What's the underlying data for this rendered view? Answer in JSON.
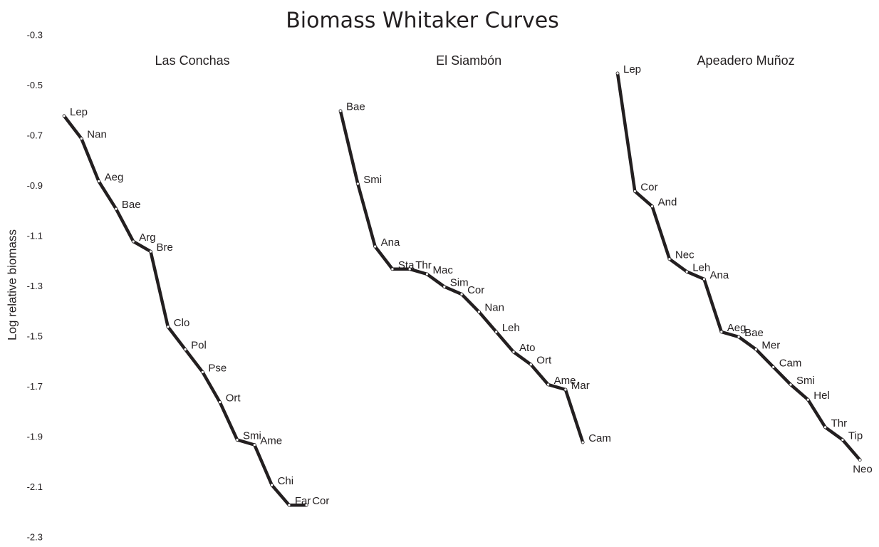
{
  "chart_data": {
    "type": "line",
    "title": "Biomass Whitaker Curves",
    "y_label": "Log relative biomass",
    "ylim": [
      -0.3,
      -2.3
    ],
    "yticks": [
      -0.3,
      -0.5,
      -0.7,
      -0.9,
      -1.1,
      -1.3,
      -1.5,
      -1.7,
      -1.9,
      -2.1,
      -2.3
    ],
    "grid": false,
    "series": [
      {
        "name": "Las Conchas",
        "color": "#231f20",
        "labels": [
          "Lep",
          "Nan",
          "Aeg",
          "Bae",
          "Arg",
          "Bre",
          "Clo",
          "Pol",
          "Pse",
          "Ort",
          "Smi",
          "Ame",
          "Chi",
          "Far",
          "Cor"
        ],
        "values": [
          -0.62,
          -0.71,
          -0.88,
          -0.99,
          -1.12,
          -1.16,
          -1.46,
          -1.55,
          -1.64,
          -1.76,
          -1.91,
          -1.93,
          -2.09,
          -2.17,
          -2.17
        ]
      },
      {
        "name": "El Siambón",
        "color": "#231f20",
        "labels": [
          "Bae",
          "Smi",
          "Ana",
          "Sta",
          "Thr",
          "Mac",
          "Sim",
          "Cor",
          "Nan",
          "Leh",
          "Ato",
          "Ort",
          "Ame",
          "Mar",
          "Cam"
        ],
        "values": [
          -0.6,
          -0.89,
          -1.14,
          -1.23,
          -1.23,
          -1.25,
          -1.3,
          -1.33,
          -1.4,
          -1.48,
          -1.56,
          -1.61,
          -1.69,
          -1.71,
          -1.92
        ]
      },
      {
        "name": "Apeadero Muñoz",
        "color": "#231f20",
        "labels": [
          "Lep",
          "Cor",
          "And",
          "Nec",
          "Leh",
          "Ana",
          "Aeg",
          "Bae",
          "Mer",
          "Cam",
          "Smi",
          "Hel",
          "Thr",
          "Tip",
          "Neo"
        ],
        "values": [
          -0.45,
          -0.92,
          -0.98,
          -1.19,
          -1.24,
          -1.27,
          -1.48,
          -1.5,
          -1.55,
          -1.62,
          -1.69,
          -1.75,
          -1.86,
          -1.91,
          -1.99
        ]
      }
    ]
  }
}
